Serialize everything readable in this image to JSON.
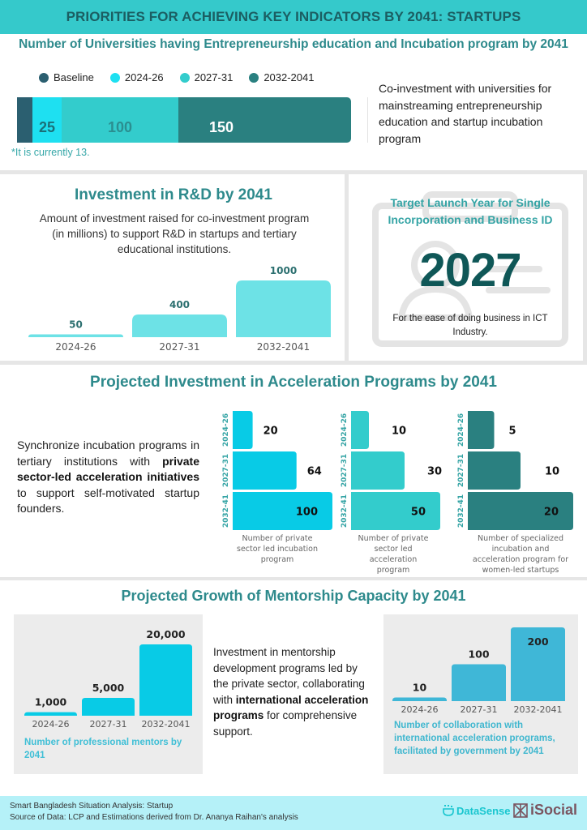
{
  "header": {
    "title": "PRIORITIES FOR ACHIEVING KEY INDICATORS BY 2041: STARTUPS"
  },
  "colors": {
    "header_bg": "#35c9cb",
    "title_teal": "#2e8a8c",
    "baseline": "#2b5f70",
    "p2024": "#1ee0f1",
    "p2027": "#33cccc",
    "p2032": "#2a8080",
    "rd_bar": "#6de2e6",
    "mentor_bar": "#08cbe6",
    "collab_bar": "#3fb7d7",
    "footer_bg": "#b5f1f8"
  },
  "universities": {
    "title": "Number of Universities having Entrepreneurship education and Incubation program by 2041",
    "legend": [
      "Baseline",
      "2024-26",
      "2027-31",
      "2032-2041"
    ],
    "note": "*It is currently 13.",
    "description": "Co-investment with universities for mainstreaming entrepreneurship education and startup incubation program"
  },
  "rd": {
    "title": "Investment in R&D by 2041",
    "description": "Amount of investment raised for co-investment program (in millions) to support R&D in startups and tertiary educational institutions."
  },
  "launch": {
    "title": "Target Launch Year for Single Incorporation and Business ID",
    "year": "2027",
    "description": "For the ease of doing business in ICT Industry."
  },
  "acceleration": {
    "title": "Projected Investment in Acceleration Programs by 2041",
    "desc_part1": "Synchronize incubation programs in tertiary institutions with ",
    "desc_bold": "private sector-led acceleration initiatives",
    "desc_part2": " to support self-motivated startup founders."
  },
  "mentorship": {
    "title": "Projected Growth of Mentorship Capacity by 2041",
    "desc_part1": "Investment in mentorship development programs led by the private sector, collaborating with ",
    "desc_bold": "international acceleration programs",
    "desc_part2": " for comprehensive support.",
    "caption1": "Number of professional mentors by 2041",
    "caption2": "Number of collaboration with international acceleration programs, facilitated by government by 2041"
  },
  "footer": {
    "line1": "Smart Bangladesh Situation Analysis: Startup",
    "line2": "Source of Data: LCP and Estimations derived from Dr. Ananya Raihan's analysis",
    "logo1": "DataSense",
    "logo2": "iSocial"
  },
  "chart_data": [
    {
      "id": "universities",
      "type": "bar",
      "orientation": "horizontal-stacked",
      "title": "Number of Universities having Entrepreneurship education and Incubation program by 2041",
      "categories": [
        "Baseline",
        "2024-26",
        "2027-31",
        "2032-2041"
      ],
      "values": [
        13,
        25,
        100,
        150
      ],
      "labels": [
        "",
        "25",
        "100",
        "150"
      ],
      "legend": "top-left"
    },
    {
      "id": "rd",
      "type": "bar",
      "title": "Investment in R&D by 2041",
      "ylabel": "Investment (in millions)",
      "categories": [
        "2024-26",
        "2027-31",
        "2032-2041"
      ],
      "values": [
        50,
        400,
        1000
      ],
      "ylim": [
        0,
        1000
      ]
    },
    {
      "id": "incubation",
      "type": "bar",
      "orientation": "horizontal",
      "title": "Number of private sector led incubation program",
      "categories": [
        "2024-26",
        "2027-31",
        "2032-41"
      ],
      "values": [
        20,
        64,
        100
      ],
      "xlim": [
        0,
        100
      ]
    },
    {
      "id": "acceleration",
      "type": "bar",
      "orientation": "horizontal",
      "title": "Number of private sector led acceleration program",
      "categories": [
        "2024-26",
        "2027-31",
        "2032-41"
      ],
      "values": [
        10,
        30,
        50
      ],
      "xlim": [
        0,
        50
      ]
    },
    {
      "id": "women",
      "type": "bar",
      "orientation": "horizontal",
      "title": "Number of specialized incubation and acceleration program for women-led startups",
      "categories": [
        "2024-26",
        "2027-31",
        "2032-41"
      ],
      "values": [
        5,
        10,
        20
      ],
      "xlim": [
        0,
        20
      ]
    },
    {
      "id": "mentors",
      "type": "bar",
      "title": "Number of professional mentors by 2041",
      "categories": [
        "2024-26",
        "2027-31",
        "2032-2041"
      ],
      "values": [
        1000,
        5000,
        20000
      ],
      "labels": [
        "1,000",
        "5,000",
        "20,000"
      ],
      "ylim": [
        0,
        20000
      ]
    },
    {
      "id": "collab",
      "type": "bar",
      "title": "Number of collaboration with international acceleration programs, facilitated by government by 2041",
      "categories": [
        "2024-26",
        "2027-31",
        "2032-2041"
      ],
      "values": [
        10,
        100,
        200
      ],
      "labels": [
        "10",
        "100",
        "200"
      ],
      "ylim": [
        0,
        200
      ]
    }
  ]
}
